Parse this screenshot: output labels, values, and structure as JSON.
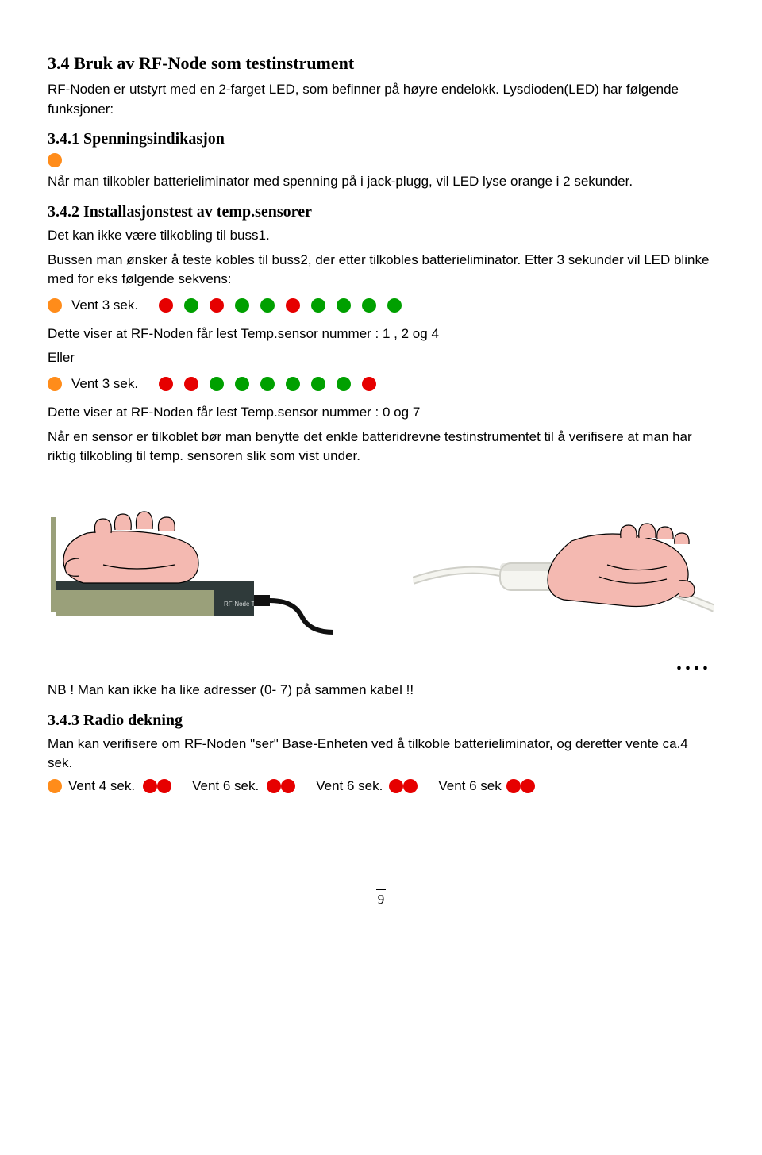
{
  "sec34": {
    "title": "3.4 Bruk av RF-Node som testinstrument",
    "p1": "RF-Noden er utstyrt med en 2-farget LED, som befinner på høyre endelokk. Lysdioden(LED) har følgende funksjoner:"
  },
  "sec341": {
    "title": "3.4.1 Spenningsindikasjon",
    "p1": "Når man tilkobler batterieliminator med spenning på i jack-plugg, vil LED lyse orange i 2 sekunder."
  },
  "sec342": {
    "title": "3.4.2 Installasjonstest av temp.sensorer",
    "p1": "Det kan ikke være tilkobling til buss1.",
    "p2": "Bussen man ønsker å teste kobles til buss2, der etter tilkobles batterieliminator. Etter 3 sekunder vil LED blinke med for eks følgende sekvens:",
    "vent1": "Vent 3 sek.",
    "seq1_colors": [
      "red",
      "green",
      "red",
      "green",
      "green",
      "red",
      "green",
      "green",
      "green",
      "green"
    ],
    "after1a": "Dette viser at RF-Noden får lest Temp.sensor nummer : 1 , 2 og 4",
    "eller": "Eller",
    "vent2": "Vent 3 sek.",
    "seq2_colors": [
      "red",
      "red",
      "green",
      "green",
      "green",
      "green",
      "green",
      "green",
      "red"
    ],
    "after2": "Dette viser at RF-Noden får lest Temp.sensor nummer : 0 og 7",
    "p3": "Når en sensor er tilkoblet bør man benytte det enkle batteridrevne testinstrumentet til å verifisere at man har riktig tilkobling til temp. sensoren slik som vist under.",
    "ellipsis": "....",
    "nb": "NB ! Man kan ikke ha like adresser (0- 7) på sammen kabel !!"
  },
  "sec343": {
    "title": "3.4.3 Radio dekning",
    "p1": "Man kan verifisere om RF-Noden \"ser\" Base-Enheten ved å tilkoble batterieliminator, og deretter vente ca.4 sek.",
    "seg1": "Vent 4 sek.",
    "seg2": "Vent 6 sek.",
    "seg3": "Vent 6 sek.",
    "seg4": "Vent 6 sek"
  },
  "pageno": "9",
  "colors": {
    "orange": "#ff8c1a",
    "green": "#00a000",
    "red": "#e60000",
    "hand_fill": "#f4b9b1",
    "hand_stroke": "#000",
    "device_dark": "#2f3a3a",
    "device_olive": "#9aa07a",
    "cable_black": "#111",
    "sensor_white": "#f5f5f0",
    "sensor_shadow": "#cfcfc8"
  }
}
